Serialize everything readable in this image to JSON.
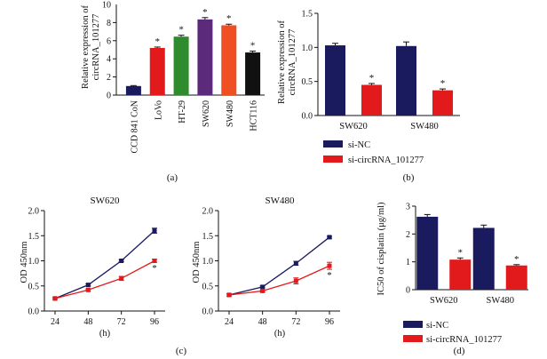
{
  "chart_data": [
    {
      "id": "a",
      "type": "bar",
      "panel_label": "(a)",
      "ylabel_lines": [
        "Relative expression of",
        "circRNA_101277"
      ],
      "ylim": [
        0,
        10
      ],
      "yticks": [
        "0",
        "2",
        "4",
        "6",
        "8"
      ],
      "y_top_label": "10",
      "categories": [
        "CCD 841 CoN",
        "LoVo",
        "HT-29",
        "SW620",
        "SW480",
        "HCT116"
      ],
      "values": [
        1.0,
        5.2,
        6.45,
        8.35,
        7.7,
        4.7
      ],
      "errors": [
        0.05,
        0.1,
        0.15,
        0.2,
        0.12,
        0.15
      ],
      "colors": [
        "#1a1a5e",
        "#e31a1c",
        "#2e8b2e",
        "#5b2a7a",
        "#f04e23",
        "#111111"
      ],
      "significance": [
        "",
        "*",
        "*",
        "*",
        "*",
        "*"
      ]
    },
    {
      "id": "b",
      "type": "bar",
      "panel_label": "(b)",
      "ylabel_lines": [
        "Relative expression of",
        "circRNA_101277"
      ],
      "ylim": [
        0,
        1.5
      ],
      "yticks": [
        "0.0",
        "0.5",
        "1.0",
        "1.5"
      ],
      "categories": [
        "SW620",
        "SW480"
      ],
      "series": [
        {
          "name": "si-NC",
          "color": "#1a1a5e",
          "values": [
            1.03,
            1.02
          ],
          "errors": [
            0.03,
            0.06
          ],
          "significance": [
            "",
            ""
          ]
        },
        {
          "name": "si-circRNA_101277",
          "color": "#e31a1c",
          "values": [
            0.45,
            0.37
          ],
          "errors": [
            0.02,
            0.02
          ],
          "significance": [
            "*",
            "*"
          ]
        }
      ]
    },
    {
      "id": "c1",
      "type": "line",
      "title": "SW620",
      "ylabel": "OD 450nm",
      "xlabel": "(h)",
      "x": [
        "24",
        "48",
        "72",
        "96"
      ],
      "ylim": [
        0,
        2.0
      ],
      "yticks": [
        "0.0",
        "0.5",
        "1.0",
        "1.5",
        "2.0"
      ],
      "series": [
        {
          "name": "si-NC",
          "color": "#1a1a5e",
          "values": [
            0.25,
            0.52,
            1.0,
            1.6
          ],
          "errors": [
            0.02,
            0.02,
            0.02,
            0.05
          ],
          "significance": [
            "",
            "",
            "",
            ""
          ]
        },
        {
          "name": "si-circRNA_101277",
          "color": "#e31a1c",
          "values": [
            0.25,
            0.42,
            0.65,
            1.0
          ],
          "errors": [
            0.02,
            0.02,
            0.04,
            0.03
          ],
          "significance": [
            "",
            "",
            "",
            "*"
          ]
        }
      ]
    },
    {
      "id": "c2",
      "type": "line",
      "title": "SW480",
      "ylabel": "OD 450nm",
      "xlabel": "(h)",
      "panel_label": "(c)",
      "x": [
        "24",
        "48",
        "72",
        "96"
      ],
      "ylim": [
        0,
        2.0
      ],
      "yticks": [
        "0.0",
        "0.5",
        "1.0",
        "1.5",
        "2.0"
      ],
      "series": [
        {
          "name": "si-NC",
          "color": "#1a1a5e",
          "values": [
            0.32,
            0.48,
            0.95,
            1.47
          ],
          "errors": [
            0.02,
            0.02,
            0.04,
            0.02
          ],
          "significance": [
            "",
            "",
            "",
            ""
          ]
        },
        {
          "name": "si-circRNA_101277",
          "color": "#e31a1c",
          "values": [
            0.32,
            0.4,
            0.6,
            0.9
          ],
          "errors": [
            0.02,
            0.02,
            0.06,
            0.07
          ],
          "significance": [
            "",
            "",
            "",
            "*"
          ]
        }
      ]
    },
    {
      "id": "d",
      "type": "bar",
      "panel_label": "(d)",
      "ylabel": "IC50 of cisplatin (μg/ml)",
      "ylim": [
        0,
        3
      ],
      "yticks": [
        "0",
        "1",
        "2",
        "3"
      ],
      "categories": [
        "SW620",
        "SW480"
      ],
      "series": [
        {
          "name": "si-NC",
          "color": "#1a1a5e",
          "values": [
            2.62,
            2.22
          ],
          "errors": [
            0.08,
            0.1
          ],
          "significance": [
            "",
            ""
          ]
        },
        {
          "name": "si-circRNA_101277",
          "color": "#e31a1c",
          "values": [
            1.08,
            0.87
          ],
          "errors": [
            0.06,
            0.03
          ],
          "significance": [
            "*",
            "*"
          ]
        }
      ]
    }
  ],
  "legends": {
    "b": [
      {
        "label": "si-NC",
        "color": "#1a1a5e"
      },
      {
        "label": "si-circRNA_101277",
        "color": "#e31a1c"
      }
    ],
    "d": [
      {
        "label": "si-NC",
        "color": "#1a1a5e"
      },
      {
        "label": "si-circRNA_101277",
        "color": "#e31a1c"
      }
    ]
  }
}
